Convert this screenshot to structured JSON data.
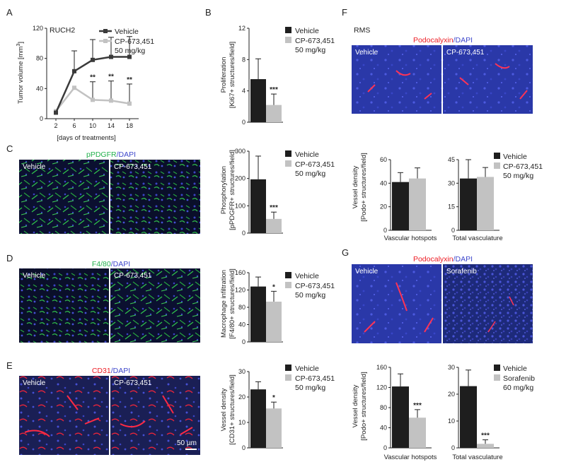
{
  "panels": {
    "A": {
      "label": "A",
      "title": "RUCH2",
      "ylabel": "Tumor volume [mm3]",
      "ylabel_main": "Tumor volume [mm",
      "ylabel_sup": "3",
      "ylabel_end": "]",
      "xlabel": "[days of treatments]"
    },
    "B": {
      "label": "B",
      "ylabel1": "Proliferation",
      "ylabel2": "[Ki67+ structures/field]"
    },
    "C": {
      "label": "C",
      "stain_a": "pPDGFR",
      "stain_b": "/DAPI",
      "img1": "Vehicle",
      "img2": "CP-673,451",
      "ylabel1": "Phosphorylation",
      "ylabel2": "[pPDGFR+ structures/field]"
    },
    "D": {
      "label": "D",
      "stain_a": "F4/80",
      "stain_b": "/DAPI",
      "img1": "Vehicle",
      "img2": "CP-673,451",
      "ylabel1": "Macrophage infiltration",
      "ylabel2": "[F4/80+ structures/field]"
    },
    "E": {
      "label": "E",
      "stain_a": "CD31",
      "stain_b": "/DAPI",
      "img1": "Vehicle",
      "img2": "CP-673,451",
      "scalebar": "50 µm",
      "ylabel1": "Vessel density",
      "ylabel2": "[CD31+ structures/field]"
    },
    "F": {
      "label": "F",
      "title": "RMS",
      "stain_a": "Podocalyxin",
      "stain_b": "/DAPI",
      "img1": "Vehicle",
      "img2": "CP-673,451",
      "ylabel1": "Vessel density",
      "ylabel2": "[Podo+ structures/field]",
      "cat1": "Vascular hotspots",
      "cat2": "Total vasculature"
    },
    "G": {
      "label": "G",
      "stain_a": "Podocalyxin",
      "stain_b": "/DAPI",
      "img1": "Vehicle",
      "img2": "Sorafenib",
      "ylabel1": "Vessel density",
      "ylabel2": "[Podo+ structures/field]",
      "cat1": "Vascular hotspots",
      "cat2": "Total vasculature"
    }
  },
  "legends": {
    "A": {
      "s1": "Vehicle",
      "s2a": "CP-673,451",
      "s2b": "50 mg/kg"
    },
    "B": {
      "s1": "Vehicle",
      "s2a": "CP-673,451",
      "s2b": "50 mg/kg"
    },
    "C": {
      "s1": "Vehicle",
      "s2a": "CP-673,451",
      "s2b": "50 mg/kg"
    },
    "D": {
      "s1": "Vehicle",
      "s2a": "CP-673,451",
      "s2b": "50 mg/kg"
    },
    "E": {
      "s1": "Vehicle",
      "s2a": "CP-673,451",
      "s2b": "50 mg/kg"
    },
    "F": {
      "s1": "Vehicle",
      "s2a": "CP-673,451",
      "s2b": "50 mg/kg"
    },
    "G": {
      "s1": "Vehicle",
      "s2a": "Sorafenib",
      "s2b": "60 mg/kg"
    }
  },
  "colors": {
    "vehicle": "#1e1e1e",
    "treated": "#c2c2c2",
    "pdgfr": "#22b14c",
    "cd31": "#ed1c24",
    "dapi": "#3f48cc"
  },
  "chart_data": [
    {
      "id": "A",
      "type": "line",
      "x": [
        2,
        6,
        10,
        14,
        18
      ],
      "xlim": [
        0,
        20
      ],
      "xticks": [
        "2",
        "6",
        "10",
        "14",
        "18"
      ],
      "ylim": [
        0,
        120
      ],
      "yticks": [
        "0",
        "40",
        "80",
        "120"
      ],
      "series": [
        {
          "name": "Vehicle",
          "values": [
            8,
            63,
            78,
            82,
            82
          ],
          "err": [
            0,
            27,
            27,
            26,
            27
          ]
        },
        {
          "name": "CP-673,451 50 mg/kg",
          "values": [
            10,
            41,
            25,
            24,
            20
          ],
          "err": [
            0,
            0,
            24,
            26,
            26
          ]
        }
      ],
      "annotations": [
        "**",
        "**",
        "**"
      ]
    },
    {
      "id": "B",
      "type": "bar",
      "categories": [
        "Vehicle",
        "CP-673,451 50 mg/kg"
      ],
      "values": [
        5.5,
        2.2
      ],
      "err": [
        2.6,
        1.4
      ],
      "ylim": [
        0,
        12
      ],
      "yticks": [
        "0",
        "4",
        "8",
        "12"
      ],
      "annotation": "***"
    },
    {
      "id": "C",
      "type": "bar",
      "categories": [
        "Vehicle",
        "CP-673,451 50 mg/kg"
      ],
      "values": [
        197,
        52
      ],
      "err": [
        85,
        25
      ],
      "ylim": [
        0,
        300
      ],
      "yticks": [
        "0",
        "100",
        "200",
        "300"
      ],
      "annotation": "***"
    },
    {
      "id": "D",
      "type": "bar",
      "categories": [
        "Vehicle",
        "CP-673,451 50 mg/kg"
      ],
      "values": [
        128,
        93
      ],
      "err": [
        22,
        24
      ],
      "ylim": [
        0,
        160
      ],
      "yticks": [
        "0",
        "40",
        "80",
        "120",
        "160"
      ],
      "annotation": "*"
    },
    {
      "id": "E",
      "type": "bar",
      "categories": [
        "Vehicle",
        "CP-673,451 50 mg/kg"
      ],
      "values": [
        23,
        15.5
      ],
      "err": [
        3,
        2.5
      ],
      "ylim": [
        0,
        30
      ],
      "yticks": [
        "0",
        "10",
        "20",
        "30"
      ],
      "annotation": "*"
    },
    {
      "id": "F1",
      "type": "bar",
      "categories": [
        "Vascular hotspots"
      ],
      "series": [
        {
          "name": "Vehicle",
          "values": [
            41
          ]
        },
        {
          "name": "CP-673,451 50 mg/kg",
          "values": [
            44
          ]
        }
      ],
      "err": [
        8,
        9
      ],
      "ylim": [
        0,
        60
      ],
      "yticks": [
        "0",
        "20",
        "40",
        "60"
      ]
    },
    {
      "id": "F2",
      "type": "bar",
      "categories": [
        "Total vasculature"
      ],
      "series": [
        {
          "name": "Vehicle",
          "values": [
            33
          ]
        },
        {
          "name": "CP-673,451 50 mg/kg",
          "values": [
            34
          ]
        }
      ],
      "err": [
        12,
        6
      ],
      "ylim": [
        0,
        45
      ],
      "yticks": [
        "0",
        "15",
        "30",
        "45"
      ]
    },
    {
      "id": "G1",
      "type": "bar",
      "categories": [
        "Vascular hotspots"
      ],
      "series": [
        {
          "name": "Vehicle",
          "values": [
            122
          ]
        },
        {
          "name": "Sorafenib 60 mg/kg",
          "values": [
            60
          ]
        }
      ],
      "err": [
        25,
        16
      ],
      "ylim": [
        0,
        160
      ],
      "yticks": [
        "0",
        "40",
        "80",
        "120",
        "160"
      ],
      "annotation": "***"
    },
    {
      "id": "G2",
      "type": "bar",
      "categories": [
        "Total vasculature"
      ],
      "series": [
        {
          "name": "Vehicle",
          "values": [
            23
          ]
        },
        {
          "name": "Sorafenib 60 mg/kg",
          "values": [
            1.5
          ]
        }
      ],
      "err": [
        6,
        1.5
      ],
      "ylim": [
        0,
        30
      ],
      "yticks": [
        "0",
        "10",
        "20",
        "30"
      ],
      "annotation": "***"
    }
  ]
}
